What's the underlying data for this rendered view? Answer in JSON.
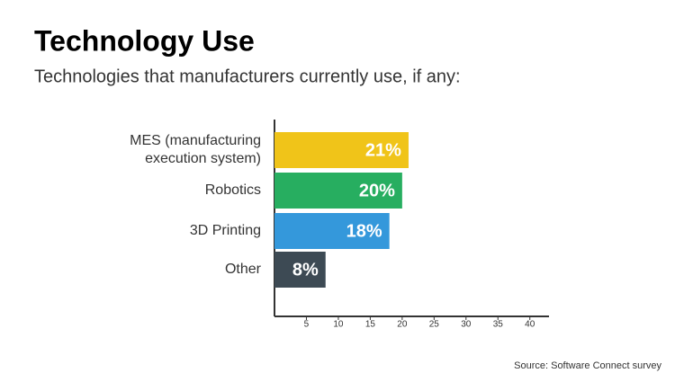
{
  "chart_data": {
    "type": "bar",
    "orientation": "horizontal",
    "title": "Technology Use",
    "subtitle": "Technologies that manufacturers currently use, if any:",
    "categories": [
      "MES (manufacturing execution system)",
      "Robotics",
      "3D Printing",
      "Other"
    ],
    "values": [
      21,
      20,
      18,
      8
    ],
    "value_labels": [
      "21%",
      "20%",
      "18%",
      "8%"
    ],
    "colors": [
      "#f0c419",
      "#27ae60",
      "#3498db",
      "#3d4a54"
    ],
    "xlim": [
      0,
      43
    ],
    "xticks": [
      5,
      10,
      15,
      20,
      25,
      30,
      35,
      40
    ],
    "source": "Source: Software Connect survey"
  }
}
